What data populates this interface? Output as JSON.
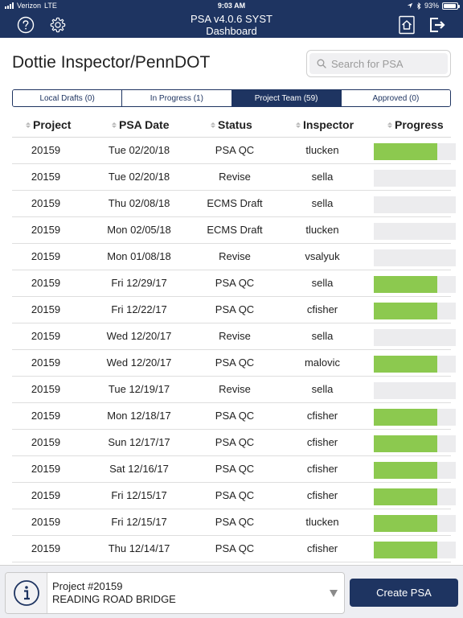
{
  "status_bar": {
    "carrier": "Verizon",
    "network": "LTE",
    "time": "9:03 AM",
    "battery": "93%",
    "battery_level": 0.93
  },
  "header": {
    "title": "PSA v4.0.6 SYST",
    "subtitle": "Dashboard",
    "icons": [
      "help-icon",
      "gear-icon",
      "home-icon",
      "logout-icon"
    ]
  },
  "page": {
    "title": "Dottie Inspector/PennDOT"
  },
  "search": {
    "placeholder": "Search for PSA",
    "value": ""
  },
  "tabs": [
    {
      "label": "Local Drafts (0)",
      "active": false
    },
    {
      "label": "In Progress (1)",
      "active": false
    },
    {
      "label": "Project Team (59)",
      "active": true
    },
    {
      "label": "Approved (0)",
      "active": false
    }
  ],
  "table": {
    "columns": [
      "Project",
      "PSA Date",
      "Status",
      "Inspector",
      "Progress"
    ],
    "rows": [
      {
        "project": "20159",
        "date": "Tue 02/20/18",
        "status": "PSA QC",
        "inspector": "tlucken",
        "progress": 0.77
      },
      {
        "project": "20159",
        "date": "Tue 02/20/18",
        "status": "Revise",
        "inspector": "sella",
        "progress": 0
      },
      {
        "project": "20159",
        "date": "Thu 02/08/18",
        "status": "ECMS Draft",
        "inspector": "sella",
        "progress": 0
      },
      {
        "project": "20159",
        "date": "Mon 02/05/18",
        "status": "ECMS Draft",
        "inspector": "tlucken",
        "progress": 0
      },
      {
        "project": "20159",
        "date": "Mon 01/08/18",
        "status": "Revise",
        "inspector": "vsalyuk",
        "progress": 0
      },
      {
        "project": "20159",
        "date": "Fri 12/29/17",
        "status": "PSA QC",
        "inspector": "sella",
        "progress": 0.77
      },
      {
        "project": "20159",
        "date": "Fri 12/22/17",
        "status": "PSA QC",
        "inspector": "cfisher",
        "progress": 0.77
      },
      {
        "project": "20159",
        "date": "Wed 12/20/17",
        "status": "Revise",
        "inspector": "sella",
        "progress": 0
      },
      {
        "project": "20159",
        "date": "Wed 12/20/17",
        "status": "PSA QC",
        "inspector": "malovic",
        "progress": 0.77
      },
      {
        "project": "20159",
        "date": "Tue 12/19/17",
        "status": "Revise",
        "inspector": "sella",
        "progress": 0
      },
      {
        "project": "20159",
        "date": "Mon 12/18/17",
        "status": "PSA QC",
        "inspector": "cfisher",
        "progress": 0.77
      },
      {
        "project": "20159",
        "date": "Sun 12/17/17",
        "status": "PSA QC",
        "inspector": "cfisher",
        "progress": 0.77
      },
      {
        "project": "20159",
        "date": "Sat 12/16/17",
        "status": "PSA QC",
        "inspector": "cfisher",
        "progress": 0.77
      },
      {
        "project": "20159",
        "date": "Fri 12/15/17",
        "status": "PSA QC",
        "inspector": "cfisher",
        "progress": 0.77
      },
      {
        "project": "20159",
        "date": "Fri 12/15/17",
        "status": "PSA QC",
        "inspector": "tlucken",
        "progress": 0.77
      },
      {
        "project": "20159",
        "date": "Thu 12/14/17",
        "status": "PSA QC",
        "inspector": "cfisher",
        "progress": 0.77
      }
    ]
  },
  "footer": {
    "project_line1": "Project #20159",
    "project_line2": "READING ROAD BRIDGE",
    "create_label": "Create PSA"
  },
  "colors": {
    "navy": "#1e3461",
    "progress_green": "#8cc94f",
    "progress_track": "#ececee"
  }
}
